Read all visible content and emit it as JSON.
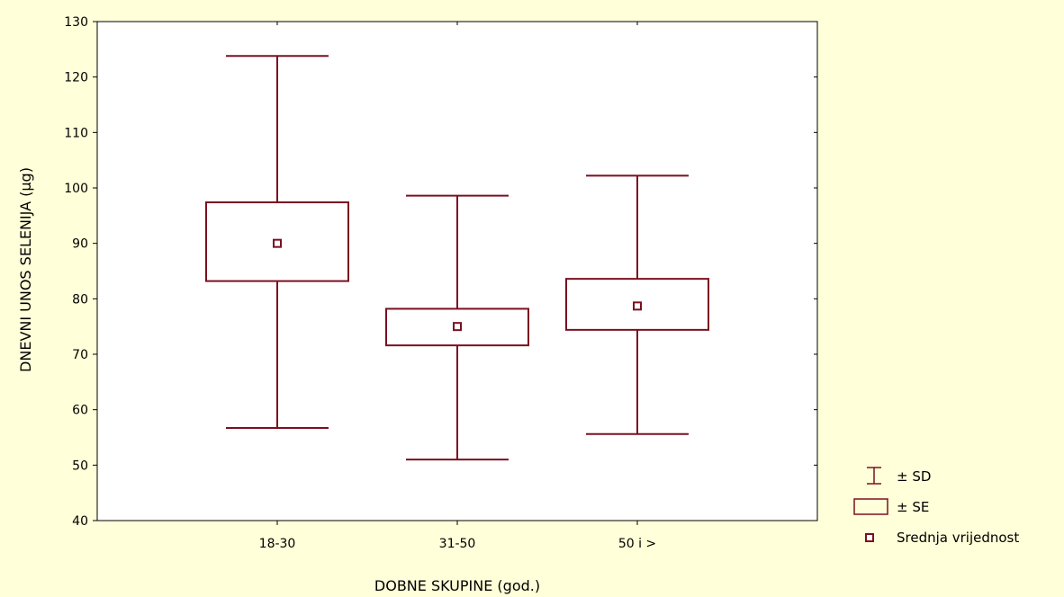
{
  "chart_data": {
    "type": "box",
    "xlabel": "DOBNE SKUPINE (god.)",
    "ylabel": "DNEVNI UNOS SELENIJA (µg)",
    "ylim": [
      40,
      130
    ],
    "yticks": [
      40,
      50,
      60,
      70,
      80,
      90,
      100,
      110,
      120,
      130
    ],
    "categories": [
      "18-30",
      "31-50",
      "50 i >"
    ],
    "series": [
      {
        "category": "18-30",
        "mean": 90,
        "se_low": 83.2,
        "se_high": 97.4,
        "sd_low": 56.7,
        "sd_high": 123.8
      },
      {
        "category": "31-50",
        "mean": 75,
        "se_low": 71.6,
        "se_high": 78.2,
        "sd_low": 51.0,
        "sd_high": 98.6
      },
      {
        "category": "50 i >",
        "mean": 78.7,
        "se_low": 74.4,
        "se_high": 83.6,
        "sd_low": 55.6,
        "sd_high": 102.2
      }
    ],
    "legend": {
      "placement": "bottom-right",
      "items": [
        {
          "label": "± SD",
          "symbol": "whisker"
        },
        {
          "label": "± SE",
          "symbol": "box"
        },
        {
          "label": "Srednja vrijednost",
          "symbol": "mean-marker"
        }
      ]
    },
    "colors": {
      "stroke": "#7a1020",
      "axis": "#000000",
      "background": "#ffffd9",
      "plot_background": "#ffffff"
    }
  }
}
